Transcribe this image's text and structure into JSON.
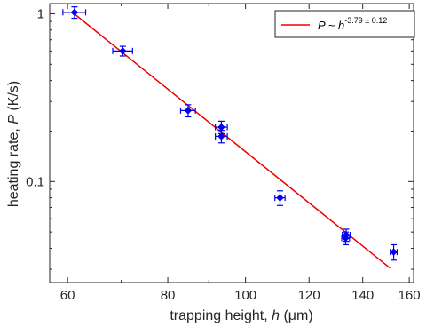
{
  "chart_data": {
    "type": "scatter",
    "title": "",
    "xlabel": {
      "prefix": "trapping height,  ",
      "var": "h",
      "unit_open": "  (",
      "unit": "μm",
      "unit_close": ")"
    },
    "ylabel": {
      "prefix": "heating rate,  ",
      "var": "P",
      "unit": "  (K/s)"
    },
    "x_scale": "log",
    "y_scale": "log",
    "xlim": [
      57,
      162
    ],
    "ylim": [
      0.025,
      1.15
    ],
    "x_ticks": [
      {
        "value": 60,
        "label": "60"
      },
      {
        "value": 80,
        "label": "80"
      },
      {
        "value": 100,
        "label": "100"
      },
      {
        "value": 120,
        "label": "120"
      },
      {
        "value": 140,
        "label": "140"
      },
      {
        "value": 160,
        "label": "160"
      }
    ],
    "y_ticks": [
      {
        "value": 0.1,
        "label": "0.1"
      },
      {
        "value": 1,
        "label": "1"
      }
    ],
    "grid": false,
    "marker_color": "#0000ee",
    "fit_color": "#ee0000",
    "points": [
      {
        "x": 61.2,
        "y": 1.02,
        "x_err": 2.0,
        "y_err_hi": 0.08,
        "y_err_lo": 0.08
      },
      {
        "x": 70.3,
        "y": 0.6,
        "x_err": 2.0,
        "y_err_hi": 0.04,
        "y_err_lo": 0.04
      },
      {
        "x": 84.8,
        "y": 0.265,
        "x_err": 1.8,
        "y_err_hi": 0.022,
        "y_err_lo": 0.022
      },
      {
        "x": 93.3,
        "y": 0.211,
        "x_err": 1.6,
        "y_err_hi": 0.018,
        "y_err_lo": 0.018
      },
      {
        "x": 93.3,
        "y": 0.186,
        "x_err": 1.6,
        "y_err_hi": 0.016,
        "y_err_lo": 0.016
      },
      {
        "x": 110.4,
        "y": 0.08,
        "x_err": 1.6,
        "y_err_hi": 0.008,
        "y_err_lo": 0.008
      },
      {
        "x": 133.5,
        "y": 0.048,
        "x_err": 1.5,
        "y_err_hi": 0.004,
        "y_err_lo": 0.004
      },
      {
        "x": 133.3,
        "y": 0.046,
        "x_err": 1.5,
        "y_err_hi": 0.004,
        "y_err_lo": 0.004
      },
      {
        "x": 153.0,
        "y": 0.038,
        "x_err": 1.5,
        "y_err_hi": 0.004,
        "y_err_lo": 0.004
      }
    ],
    "fit_line": {
      "x": [
        61.0,
        151.4
      ],
      "y": [
        1.01,
        0.0305
      ]
    },
    "legend": {
      "placement": "top-right",
      "entries": [
        {
          "prefix": "P ~ ",
          "base": "h",
          "exponent": "-3.79 ± 0.12"
        }
      ]
    }
  }
}
